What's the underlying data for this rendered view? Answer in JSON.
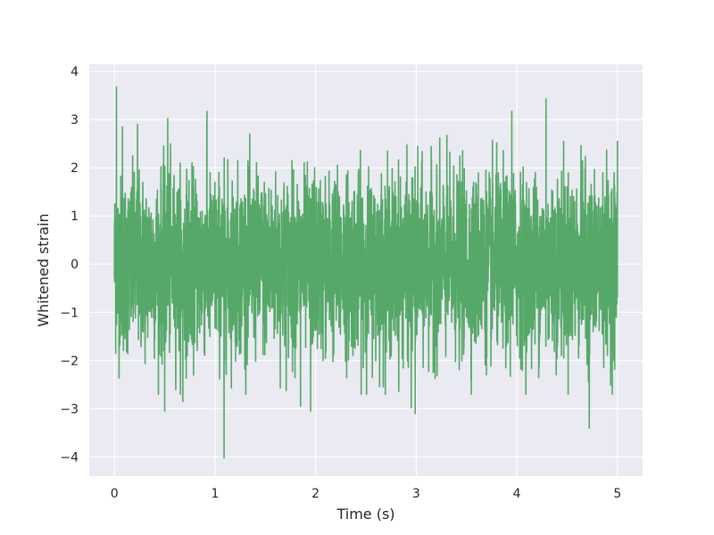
{
  "chart_data": {
    "type": "line",
    "title": "",
    "xlabel": "Time (s)",
    "ylabel": "Whitened strain",
    "xlim": [
      -0.25,
      5.25
    ],
    "ylim": [
      -4.4,
      4.15
    ],
    "x_ticks": [
      0,
      1,
      2,
      3,
      4,
      5
    ],
    "x_tick_labels": [
      "0",
      "1",
      "2",
      "3",
      "4",
      "5"
    ],
    "y_ticks": [
      -4,
      -3,
      -2,
      -1,
      0,
      1,
      2,
      3,
      4
    ],
    "y_tick_labels": [
      "−4",
      "−3",
      "−2",
      "−1",
      "0",
      "1",
      "2",
      "3",
      "4"
    ],
    "grid": true,
    "legend": "none",
    "background_color": "#eaeaf2",
    "series": [
      {
        "color": "#55a868",
        "x_start": 0,
        "x_end": 5,
        "approx_std": 1.0,
        "notable_points": [
          {
            "x": 0.02,
            "y": 3.68
          },
          {
            "x": 0.08,
            "y": 2.85
          },
          {
            "x": 0.23,
            "y": 2.9
          },
          {
            "x": 0.5,
            "y": -3.05
          },
          {
            "x": 0.53,
            "y": 3.02
          },
          {
            "x": 0.68,
            "y": -2.85
          },
          {
            "x": 0.92,
            "y": 3.17
          },
          {
            "x": 1.09,
            "y": -4.02
          },
          {
            "x": 1.85,
            "y": -2.95
          },
          {
            "x": 1.95,
            "y": -3.05
          },
          {
            "x": 2.95,
            "y": -2.98
          },
          {
            "x": 2.99,
            "y": -3.1
          },
          {
            "x": 3.95,
            "y": 3.17
          },
          {
            "x": 4.29,
            "y": 3.43
          },
          {
            "x": 4.72,
            "y": -3.4
          },
          {
            "x": 5.0,
            "y": 2.56
          }
        ]
      }
    ]
  }
}
